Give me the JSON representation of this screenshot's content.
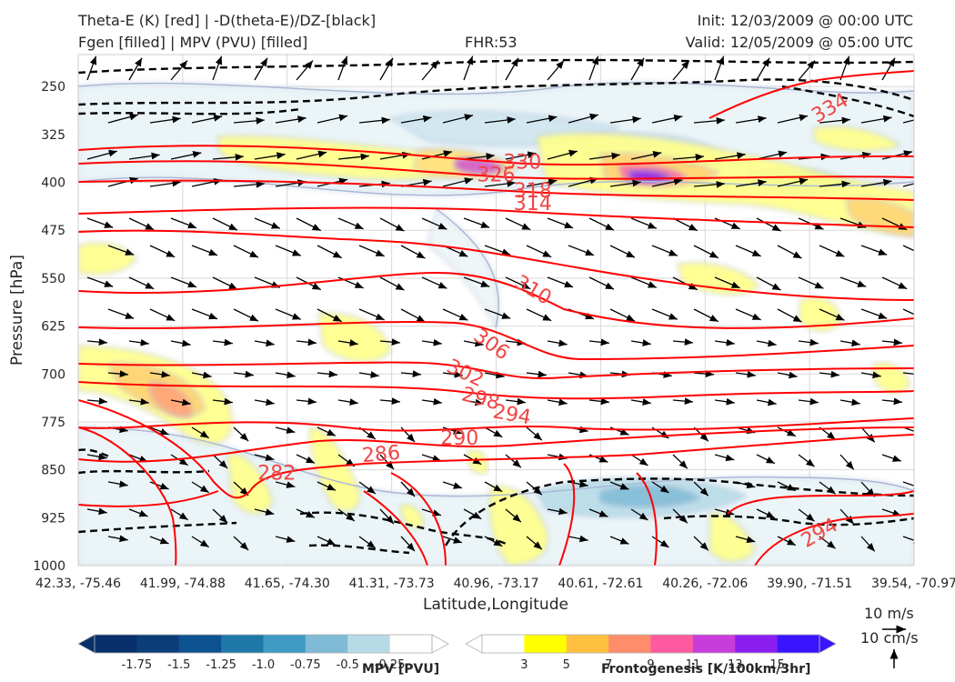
{
  "header": {
    "title_left_1": "Theta-E (K) [red] | -D(theta-E)/DZ-[black]",
    "title_left_2": "Fgen [filled] | MPV (PVU) [filled]",
    "fhr": "FHR:53",
    "init": "Init: 12/03/2009 @ 00:00 UTC",
    "valid": "Valid: 12/05/2009 @ 05:00 UTC"
  },
  "colors": {
    "theta_e": "#ff0000",
    "ddz": "#000000",
    "mpv_ramp": [
      "#08306b",
      "#0b3d78",
      "#0d5290",
      "#1f78a8",
      "#3f9bc4",
      "#7fbbd6",
      "#b7dbe6",
      "#ffffff"
    ],
    "fgen_ramp": [
      "#ffffff",
      "#ffff00",
      "#ffc040",
      "#ff8c6a",
      "#ff5aa0",
      "#c83cdc",
      "#8a1ef0",
      "#3a14ff"
    ],
    "label_red": "#f04646"
  },
  "legend": {
    "wind_ref_1": "10 m/s",
    "wind_ref_2": "10 cm/s",
    "mpv_label": "MPV [PVU]",
    "fgen_label": "Frontogenesis [K/100km/3hr]",
    "mpv_ticks": [
      "-1.75",
      "-1.5",
      "-1.25",
      "-1.0",
      "-0.75",
      "-0.5",
      "-0.25"
    ],
    "fgen_ticks": [
      "3",
      "5",
      "7",
      "9",
      "11",
      "13",
      "15"
    ]
  },
  "chart_data": {
    "type": "cross-section",
    "xlabel": "Latitude,Longitude",
    "ylabel": "Pressure [hPa]",
    "ylim": [
      1000,
      200
    ],
    "y_log": false,
    "grid": true,
    "y_ticks": [
      250,
      325,
      400,
      475,
      550,
      625,
      700,
      775,
      850,
      925,
      1000
    ],
    "x_ticks": [
      "42.33, -75.46",
      "41.99, -74.88",
      "41.65, -74.30",
      "41.31, -73.73",
      "40.96, -73.17",
      "40.61, -72.61",
      "40.26, -72.06",
      "39.90, -71.51",
      "39.54, -70.97"
    ],
    "theta_e_labels": [
      {
        "v": "334",
        "x": 7.2,
        "p": 285,
        "rot": -30
      },
      {
        "v": "330",
        "x": 4.25,
        "p": 370,
        "rot": 0
      },
      {
        "v": "326",
        "x": 4.0,
        "p": 390,
        "rot": 0
      },
      {
        "v": "318",
        "x": 4.35,
        "p": 415,
        "rot": 0
      },
      {
        "v": "314",
        "x": 4.35,
        "p": 435,
        "rot": 0
      },
      {
        "v": "310",
        "x": 4.35,
        "p": 570,
        "rot": 30
      },
      {
        "v": "306",
        "x": 3.95,
        "p": 655,
        "rot": 35
      },
      {
        "v": "302",
        "x": 3.7,
        "p": 700,
        "rot": 25
      },
      {
        "v": "298",
        "x": 3.85,
        "p": 740,
        "rot": 15
      },
      {
        "v": "294",
        "x": 4.15,
        "p": 765,
        "rot": 10
      },
      {
        "v": "290",
        "x": 3.65,
        "p": 802,
        "rot": 0
      },
      {
        "v": "286",
        "x": 2.9,
        "p": 827,
        "rot": -5
      },
      {
        "v": "282",
        "x": 1.9,
        "p": 857,
        "rot": 0
      },
      {
        "v": "294",
        "x": 7.1,
        "p": 950,
        "rot": -30
      }
    ],
    "mpv_colorbar_levels": [
      -2.0,
      -1.75,
      -1.5,
      -1.25,
      -1.0,
      -0.75,
      -0.5,
      -0.25,
      0.0
    ],
    "fgen_colorbar_levels": [
      1,
      3,
      5,
      7,
      9,
      11,
      13,
      15,
      17
    ]
  }
}
